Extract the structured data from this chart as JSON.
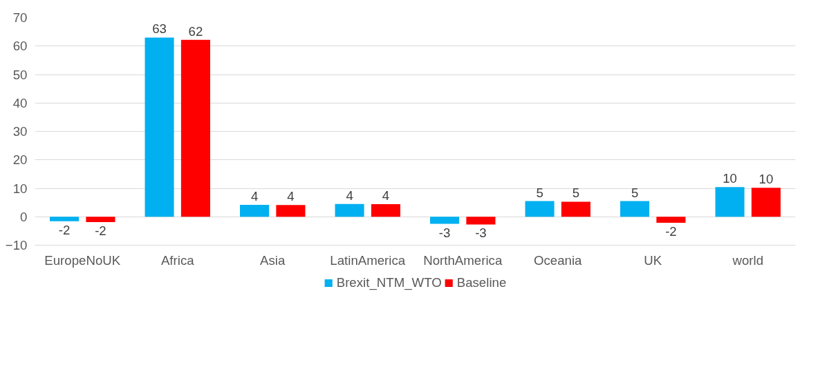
{
  "chart_data": {
    "type": "bar",
    "categories": [
      "EuropeNoUK",
      "Africa",
      "Asia",
      "LatinAmerica",
      "NorthAmerica",
      "Oceania",
      "UK",
      "world"
    ],
    "series": [
      {
        "name": "Brexit_NTM_WTO",
        "color": "#00b0f0",
        "values": [
          -1.6,
          63.0,
          4.2,
          4.5,
          -2.5,
          5.5,
          5.5,
          10.4
        ],
        "value_labels": [
          "-2",
          "63",
          "4",
          "4",
          "-3",
          "5",
          "5",
          "10"
        ]
      },
      {
        "name": "Baseline",
        "color": "#ff0000",
        "values": [
          -1.9,
          62.2,
          4.1,
          4.4,
          -2.7,
          5.3,
          -2.1,
          10.2
        ],
        "value_labels": [
          "-2",
          "62",
          "4",
          "4",
          "-3",
          "5",
          "-2",
          "10"
        ]
      }
    ],
    "ylim": [
      -10,
      70
    ],
    "yticks": [
      -10,
      0,
      10,
      20,
      30,
      40,
      50,
      60,
      70
    ],
    "grid": "y",
    "legend": "bottom"
  }
}
